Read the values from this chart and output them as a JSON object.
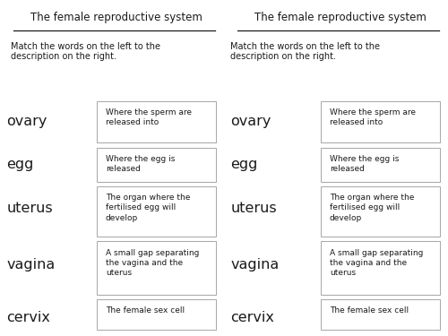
{
  "title": "The female reproductive system",
  "subtitle": "Match the words on the left to the\ndescription on the right.",
  "words": [
    "ovary",
    "egg",
    "uterus",
    "vagina",
    "cervix"
  ],
  "descriptions": [
    "Where the sperm are\nreleased into",
    "Where the egg is\nreleased",
    "The organ where the\nfertilised egg will\ndevelop",
    "A small gap separating\nthe vagina and the\nuterus",
    "The female sex cell"
  ],
  "bg_color": "#ffffff",
  "text_color": "#1a1a1a",
  "box_edge_color": "#aaaaaa",
  "box_face_color": "#ffffff",
  "title_fontsize": 8.5,
  "subtitle_fontsize": 7.0,
  "word_fontsize": 11.5,
  "desc_fontsize": 6.5
}
